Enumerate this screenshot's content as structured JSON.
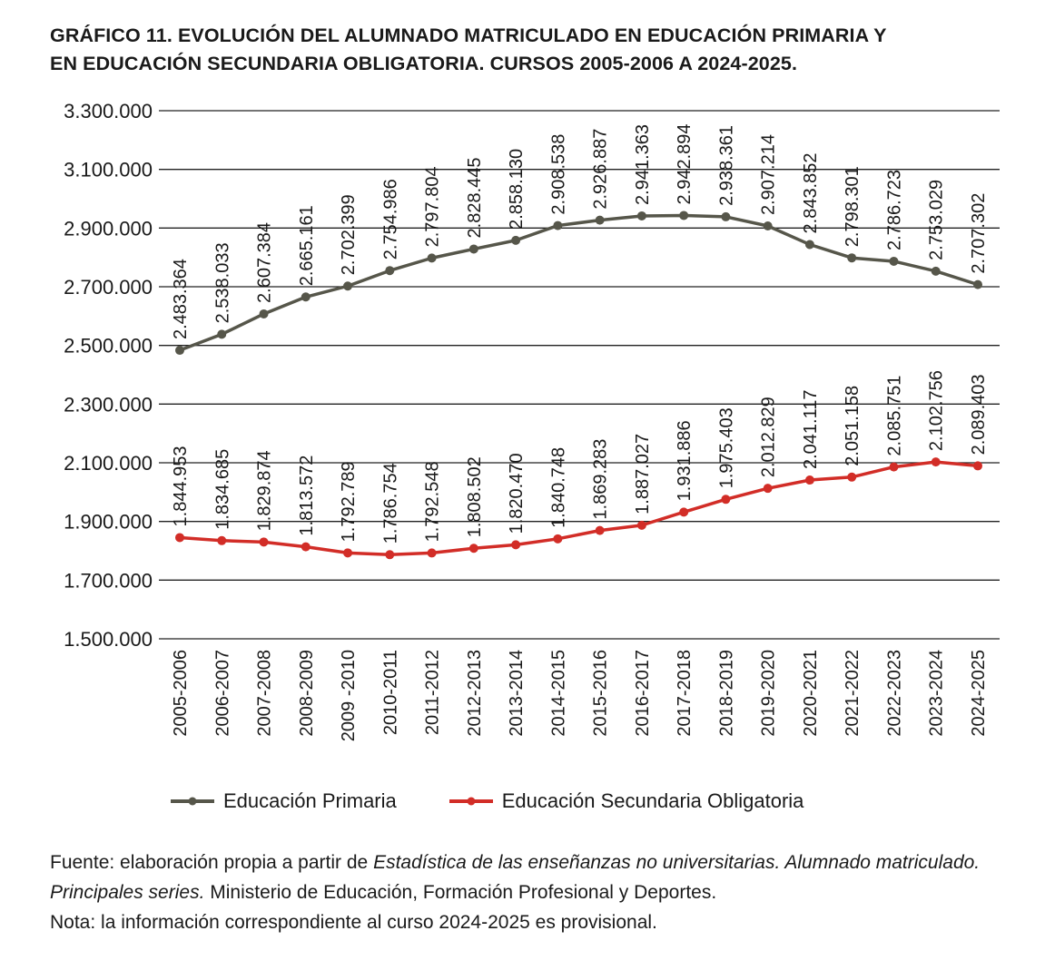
{
  "title_lines": [
    "GRÁFICO 11. EVOLUCIÓN DEL ALUMNADO MATRICULADO EN EDUCACIÓN PRIMARIA Y",
    "EN EDUCACIÓN SECUNDARIA OBLIGATORIA. CURSOS 2005-2006 A 2024-2025."
  ],
  "chart_data": {
    "type": "line",
    "title": "GRÁFICO 11. EVOLUCIÓN DEL ALUMNADO MATRICULADO EN EDUCACIÓN PRIMARIA Y EN EDUCACIÓN SECUNDARIA OBLIGATORIA. CURSOS 2005-2006 A 2024-2025.",
    "categories": [
      "2005-2006",
      "2006-2007",
      "2007-2008",
      "2008-2009",
      "2009 -2010",
      "2010-2011",
      "2011-2012",
      "2012-2013",
      "2013-2014",
      "2014-2015",
      "2015-2016",
      "2016-2017",
      "2017-2018",
      "2018-2019",
      "2019-2020",
      "2020-2021",
      "2021-2022",
      "2022-2023",
      "2023-2024",
      "2024-2025"
    ],
    "ylim": [
      1500000,
      3300000
    ],
    "yticks": [
      1500000,
      1700000,
      1900000,
      2100000,
      2300000,
      2500000,
      2700000,
      2900000,
      3100000,
      3300000
    ],
    "ytick_labels": [
      "1.500.000",
      "1.700.000",
      "1.900.000",
      "2.100.000",
      "2.300.000",
      "2.500.000",
      "2.700.000",
      "2.900.000",
      "3.100.000",
      "3.300.000"
    ],
    "grid": true,
    "legend_position": "bottom",
    "series": [
      {
        "name": "Educación Primaria",
        "color": "#56564a",
        "values": [
          2483364,
          2538033,
          2607384,
          2665161,
          2702399,
          2754986,
          2797804,
          2828445,
          2858130,
          2908538,
          2926887,
          2941363,
          2942894,
          2938361,
          2907214,
          2843852,
          2798301,
          2786723,
          2753029,
          2707302
        ],
        "labels": [
          "2.483.364",
          "2.538.033",
          "2.607.384",
          "2.665.161",
          "2.702.399",
          "2.754.986",
          "2.797.804",
          "2.828.445",
          "2.858.130",
          "2.908.538",
          "2.926.887",
          "2.941.363",
          "2.942.894",
          "2.938.361",
          "2.907.214",
          "2.843.852",
          "2.798.301",
          "2.786.723",
          "2.753.029",
          "2.707.302"
        ]
      },
      {
        "name": "Educación Secundaria Obligatoria",
        "color": "#d22d27",
        "values": [
          1844953,
          1834685,
          1829874,
          1813572,
          1792789,
          1786754,
          1792548,
          1808502,
          1820470,
          1840748,
          1869283,
          1887027,
          1931886,
          1975403,
          2012829,
          2041117,
          2051158,
          2085751,
          2102756,
          2089403
        ],
        "labels": [
          "1.844.953",
          "1.834.685",
          "1.829.874",
          "1.813.572",
          "1.792.789",
          "1.786.754",
          "1.792.548",
          "1.808.502",
          "1.820.470",
          "1.840.748",
          "1.869.283",
          "1.887.027",
          "1.931.886",
          "1.975.403",
          "2.012.829",
          "2.041.117",
          "2.051.158",
          "2.085.751",
          "2.102.756",
          "2.089.403"
        ]
      }
    ]
  },
  "footnote": {
    "l1a": "Fuente: elaboración propia a partir de ",
    "l1b": "Estadística de las enseñanzas no universitarias. Alumnado matriculado. Principales series.",
    "l1c": " Ministerio de Educación, Formación Profesional y Deportes.",
    "l2": "Nota: la información correspondiente al curso 2024-2025 es provisional."
  }
}
